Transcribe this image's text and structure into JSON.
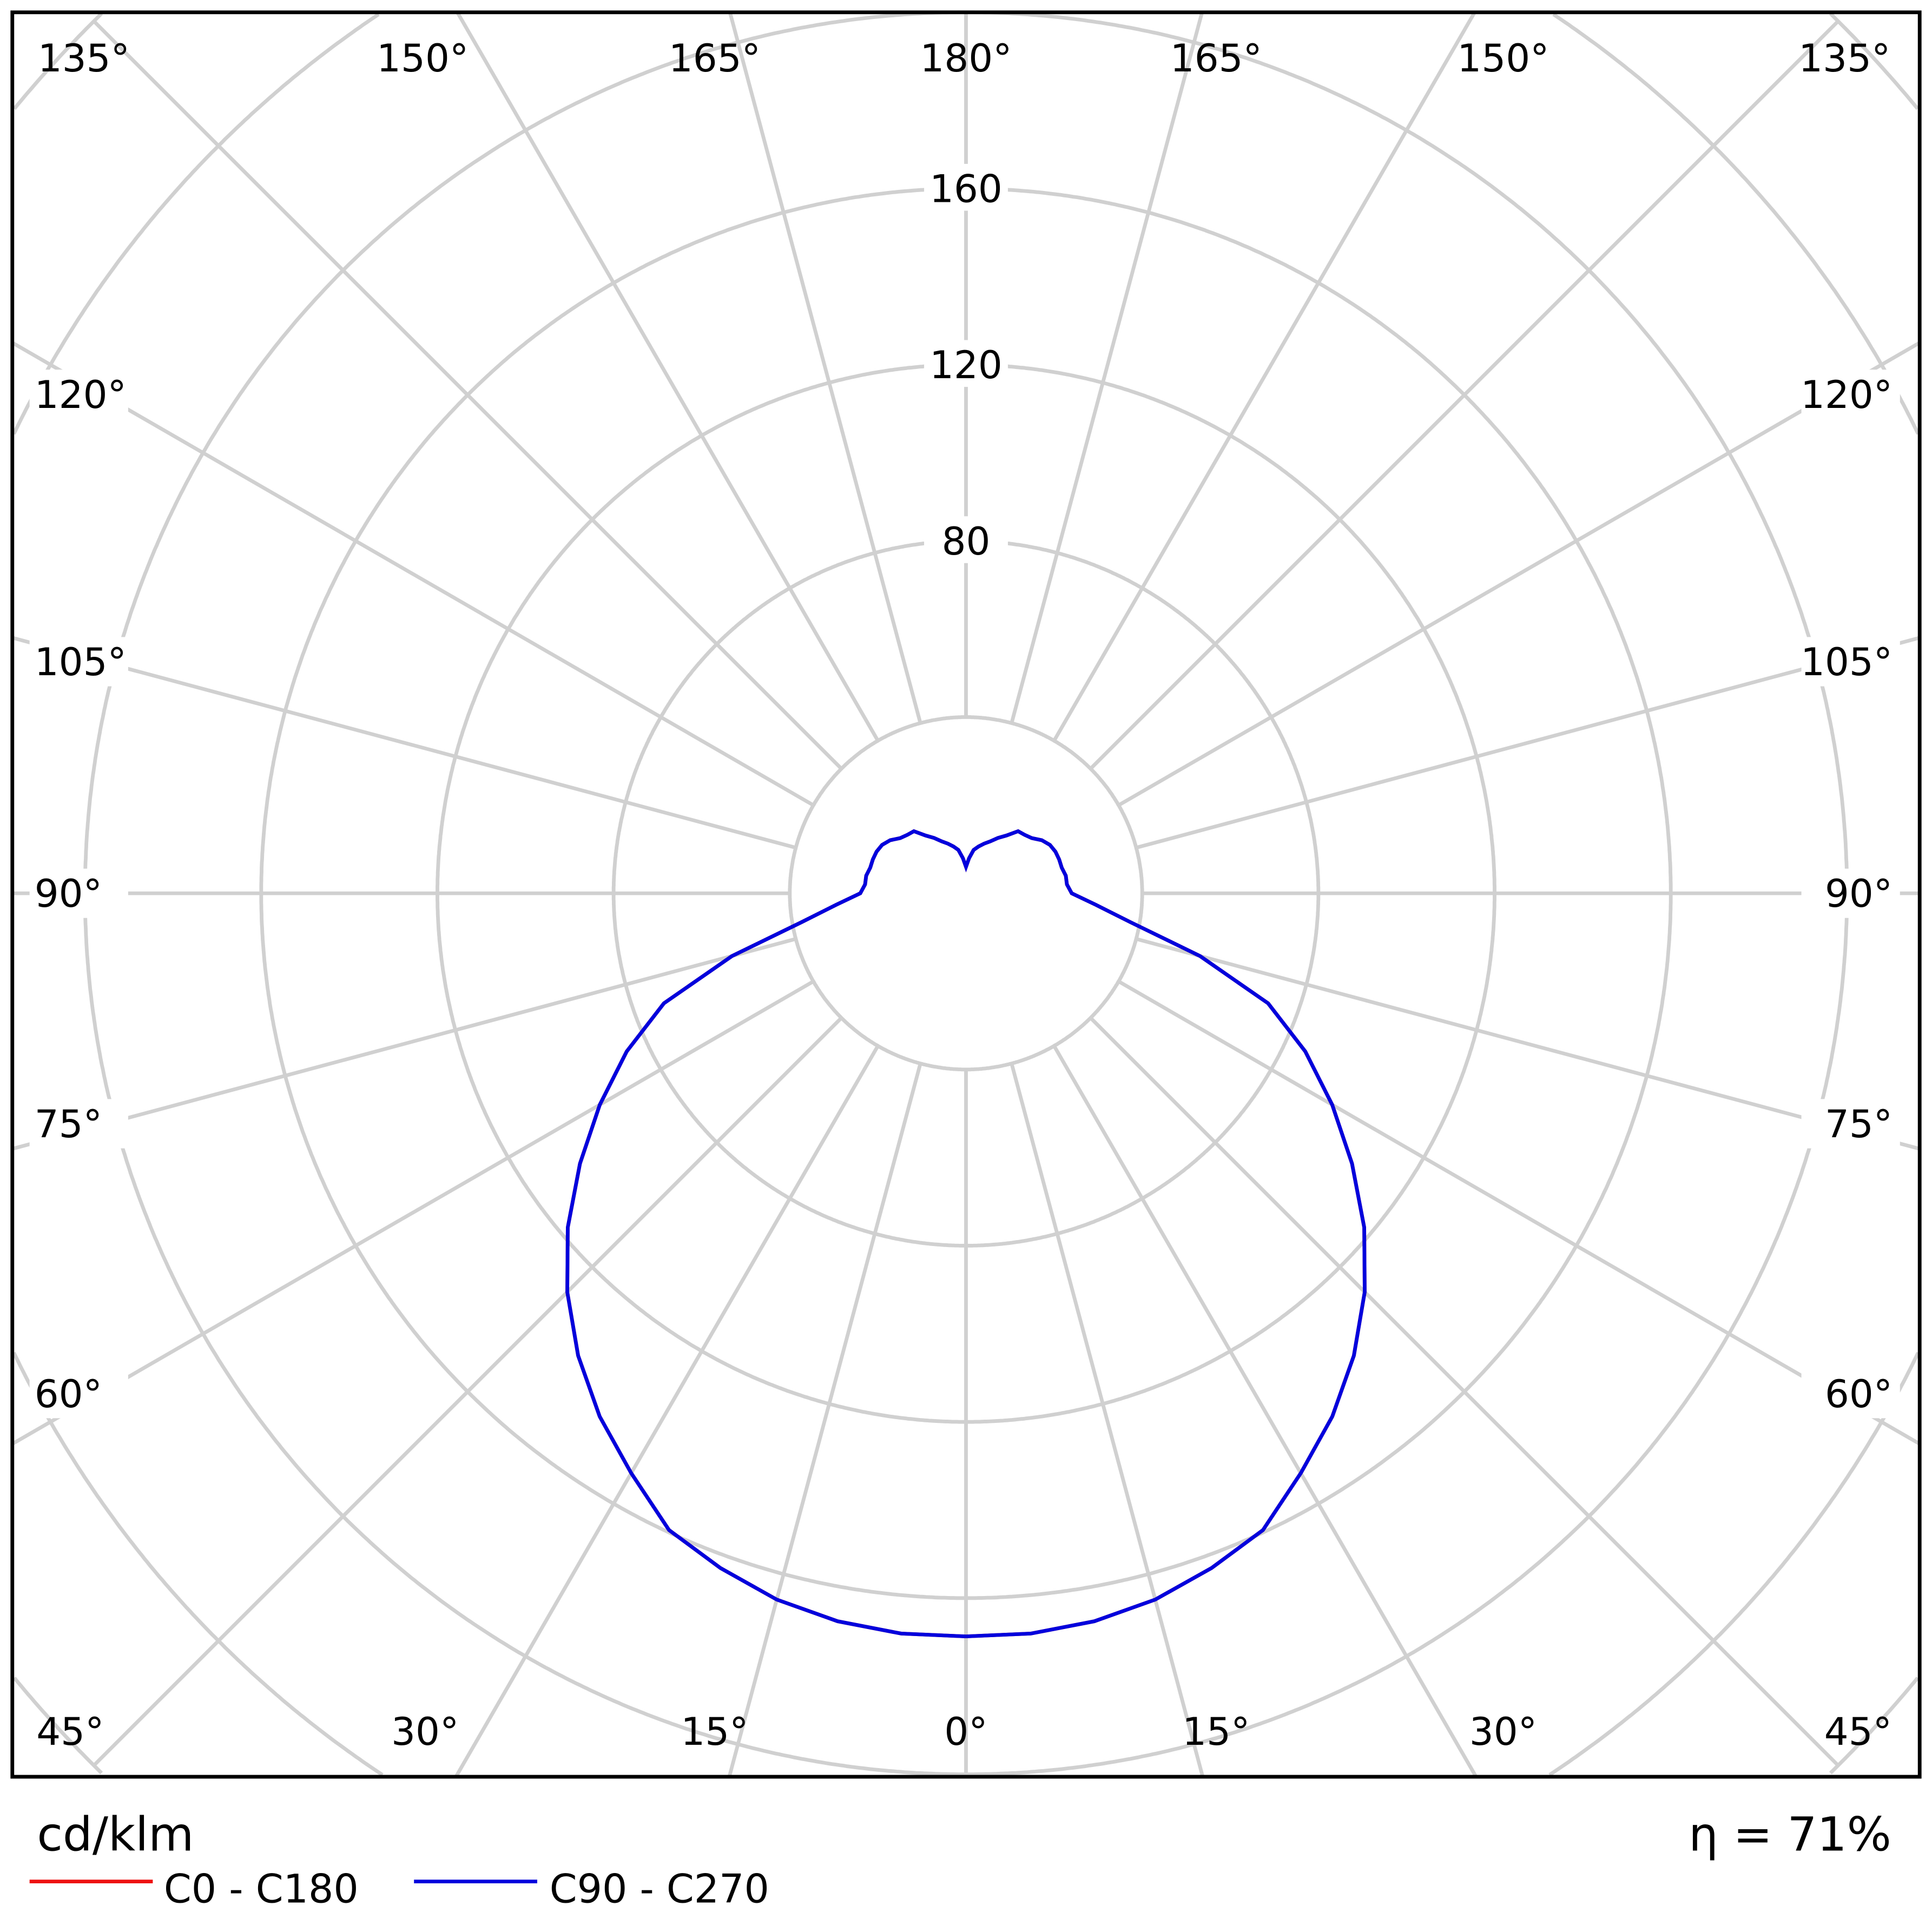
{
  "chart_data": {
    "type": "polar",
    "title": "",
    "unit_label": "cd/klm",
    "efficiency_label": "η = 71%",
    "radial_ticks": [
      80,
      120,
      160
    ],
    "radial_max": 280,
    "radial_step": 40,
    "angle_step": 15,
    "angle_labels": {
      "top": [
        "135°",
        "150°",
        "165°",
        "180°",
        "165°",
        "150°",
        "135°"
      ],
      "left": [
        "120°",
        "105°",
        "90°",
        "75°",
        "60°"
      ],
      "right": [
        "120°",
        "105°",
        "90°",
        "75°",
        "60°"
      ],
      "bottom": [
        "45°",
        "30°",
        "15°",
        "0°",
        "15°",
        "30°",
        "45°"
      ]
    },
    "gamma": [
      0,
      5,
      10,
      15,
      20,
      25,
      30,
      35,
      40,
      45,
      50,
      55,
      60,
      65,
      70,
      75,
      80,
      85,
      90,
      95,
      100,
      105,
      110,
      115,
      120,
      125,
      130,
      135,
      140,
      145,
      150,
      155,
      160,
      165,
      170,
      175,
      180
    ],
    "series": [
      {
        "name": "C0 - C180",
        "color": "#ee1111",
        "values": [
          168.7,
          168.7,
          167.8,
          166,
          163,
          159.5,
          152,
          145,
          137,
          128,
          118,
          107,
          96,
          85,
          73,
          55,
          38,
          29.5,
          24,
          23,
          23,
          22.5,
          22.5,
          22.4,
          22,
          21,
          19.5,
          18.8,
          18.4,
          16,
          14.5,
          13,
          12,
          11,
          10,
          8,
          6
        ]
      },
      {
        "name": "C90 - C270",
        "color": "#0000dd",
        "values": [
          168.7,
          168.7,
          167.8,
          166,
          163,
          159.5,
          152,
          145,
          137,
          128,
          118,
          107,
          96,
          85,
          73,
          55,
          38,
          29.5,
          24,
          23,
          23,
          22.5,
          22.5,
          22.4,
          22,
          21,
          19.5,
          18.8,
          18.4,
          16,
          14.5,
          13,
          12,
          11,
          10,
          8,
          6
        ]
      }
    ],
    "legend_position": "bottom-left",
    "grid": true
  }
}
